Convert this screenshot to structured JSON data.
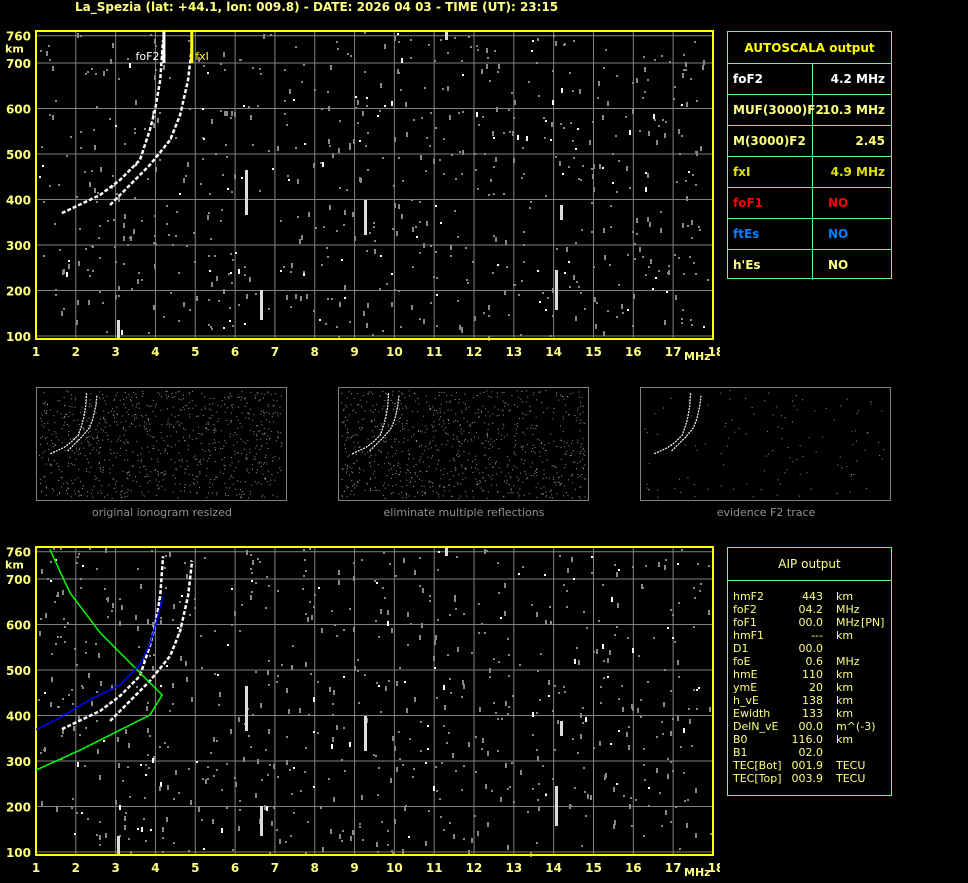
{
  "header": {
    "title": "La_Spezia (lat: +44.1, lon: 009.8) - DATE: 2026 04 03 - TIME (UT): 23:15"
  },
  "colors": {
    "axis": "#ffff00",
    "grid": "#808080",
    "table_border": "#60ff80",
    "label_yellow": "#ffff80",
    "fxI": "#e0e000",
    "foF1": "#ff0000",
    "ftEs": "#0080ff",
    "profile": "#00ff00",
    "aip_trace": "#0000ff"
  },
  "chart_data": [
    {
      "type": "scatter",
      "title": "",
      "xlabel": "MHz",
      "ylabel": "km",
      "xlim": [
        1,
        18
      ],
      "ylim": [
        100,
        760
      ],
      "xticks": [
        "1",
        "2",
        "3",
        "4",
        "5",
        "6",
        "7",
        "8",
        "9",
        "10",
        "11",
        "12",
        "13",
        "14",
        "15",
        "16",
        "17",
        "18"
      ],
      "yticks": [
        "760",
        "700",
        "600",
        "500",
        "400",
        "300",
        "200",
        "100"
      ],
      "grid": true,
      "annotations": [
        {
          "text": "foF2",
          "freq": 4.2
        },
        {
          "text": "fxI",
          "freq": 4.9
        }
      ],
      "series": [
        {
          "trace": "O",
          "points": [
            [
              1.65,
              370
            ],
            [
              2.61,
              410
            ],
            [
              3.11,
              443
            ],
            [
              3.61,
              487
            ],
            [
              3.86,
              553
            ],
            [
              3.99,
              597
            ],
            [
              4.12,
              663
            ],
            [
              4.19,
              750
            ]
          ]
        },
        {
          "trace": "X",
          "points": [
            [
              2.86,
              388
            ],
            [
              3.36,
              432
            ],
            [
              3.86,
              476
            ],
            [
              4.37,
              531
            ],
            [
              4.62,
              586
            ],
            [
              4.82,
              663
            ],
            [
              4.92,
              740
            ]
          ]
        }
      ]
    },
    {
      "type": "line",
      "title": "",
      "xlabel": "MHz",
      "ylabel": "km",
      "xlim": [
        1,
        18
      ],
      "ylim": [
        100,
        760
      ],
      "grid": true,
      "series": [
        {
          "trace": "profile",
          "color": "#00ff00",
          "points": [
            [
              1.35,
              765
            ],
            [
              1.85,
              670
            ],
            [
              2.61,
              582
            ],
            [
              3.36,
              516
            ],
            [
              3.86,
              472
            ],
            [
              4.17,
              445
            ],
            [
              3.86,
              401
            ],
            [
              3.11,
              368
            ],
            [
              2.11,
              324
            ],
            [
              1.0,
              280
            ]
          ]
        },
        {
          "trace": "aip",
          "color": "#0000ff",
          "points": [
            [
              1.0,
              369
            ],
            [
              1.6,
              395
            ],
            [
              2.36,
              435
            ],
            [
              3.11,
              467
            ],
            [
              3.61,
              512
            ],
            [
              3.86,
              556
            ],
            [
              4.04,
              611
            ],
            [
              4.19,
              662
            ]
          ]
        }
      ]
    }
  ],
  "thumbnails": [
    {
      "label": "original ionogram resized"
    },
    {
      "label": "eliminate multiple reflections"
    },
    {
      "label": "evidence F2 trace"
    }
  ],
  "autoscala": {
    "title": "AUTOSCALA output",
    "rows": [
      {
        "key": "foF2",
        "value": "4.2 MHz",
        "color": "#ffffff"
      },
      {
        "key": "MUF(3000)F2",
        "value": "10.3 MHz",
        "color": "#ffff80"
      },
      {
        "key": "M(3000)F2",
        "value": "2.45",
        "color": "#ffff80"
      },
      {
        "key": "fxI",
        "value": "4.9 MHz",
        "color": "#e0e000"
      },
      {
        "key": "foF1",
        "value": "NO",
        "color": "#ff0000"
      },
      {
        "key": "ftEs",
        "value": "NO",
        "color": "#0080ff"
      },
      {
        "key": "h'Es",
        "value": "NO",
        "color": "#ffff80"
      }
    ]
  },
  "aip": {
    "title": "AIP output",
    "rows": [
      {
        "key": "hmF2",
        "value": "443",
        "unit": "km",
        "extra": ""
      },
      {
        "key": "foF2",
        "value": "04.2",
        "unit": "MHz",
        "extra": ""
      },
      {
        "key": "foF1",
        "value": "00.0",
        "unit": "MHz",
        "extra": "[PN]"
      },
      {
        "key": "hmF1",
        "value": "---",
        "unit": "km",
        "extra": ""
      },
      {
        "key": "D1",
        "value": "00.0",
        "unit": "",
        "extra": ""
      },
      {
        "key": "foE",
        "value": "0.6",
        "unit": "MHz",
        "extra": ""
      },
      {
        "key": "hmE",
        "value": "110",
        "unit": "km",
        "extra": ""
      },
      {
        "key": "ymE",
        "value": "20",
        "unit": "km",
        "extra": ""
      },
      {
        "key": "h_vE",
        "value": "138",
        "unit": "km",
        "extra": ""
      },
      {
        "key": "Ewidth",
        "value": "133",
        "unit": "km",
        "extra": ""
      },
      {
        "key": "DelN_vE",
        "value": "00.0",
        "unit": "m^(-3)",
        "extra": ""
      },
      {
        "key": "B0",
        "value": "116.0",
        "unit": "km",
        "extra": ""
      },
      {
        "key": "B1",
        "value": "02.0",
        "unit": "",
        "extra": ""
      },
      {
        "key": "TEC[Bot]",
        "value": "001.9",
        "unit": "TECU",
        "extra": ""
      },
      {
        "key": "TEC[Top]",
        "value": "003.9",
        "unit": "TECU",
        "extra": ""
      }
    ]
  }
}
